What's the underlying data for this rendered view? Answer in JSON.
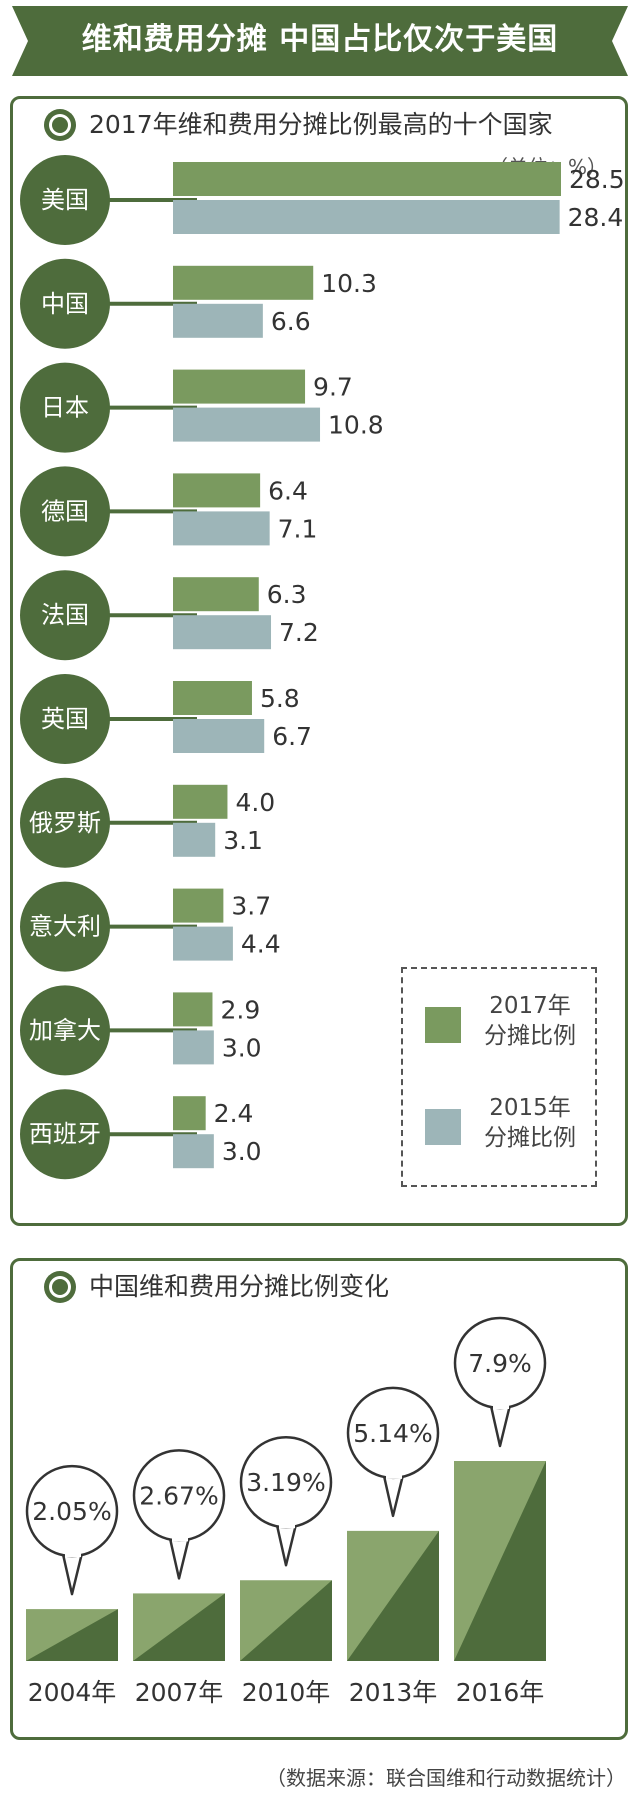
{
  "header": {
    "title": "维和费用分摊 中国占比仅次于美国"
  },
  "panel1": {
    "title": "2017年维和费用分摊比例最高的十个国家",
    "unit": "（单位：%）",
    "legend": [
      {
        "line1": "2017年",
        "line2": "分摊比例",
        "color": "#7a9a5f"
      },
      {
        "line1": "2015年",
        "line2": "分摊比例",
        "color": "#9db5b8"
      }
    ]
  },
  "panel2": {
    "title": "中国维和费用分摊比例变化"
  },
  "source": "（数据来源：联合国维和行动数据统计）",
  "colors": {
    "dark_green": "#4e6c3c",
    "green_2017": "#7a9a5f",
    "blue_2015": "#9db5b8",
    "bar_light": "#8aa56d"
  },
  "chart_data": [
    {
      "type": "bar",
      "orientation": "horizontal",
      "title": "2017年维和费用分摊比例最高的十个国家",
      "unit": "%",
      "categories": [
        "美国",
        "中国",
        "日本",
        "德国",
        "法国",
        "英国",
        "俄罗斯",
        "意大利",
        "加拿大",
        "西班牙"
      ],
      "series": [
        {
          "name": "2017年分摊比例",
          "values": [
            28.5,
            10.3,
            9.7,
            6.4,
            6.3,
            5.8,
            4.0,
            3.7,
            2.9,
            2.4
          ],
          "labels": [
            "28.5",
            "10.3",
            "9.7",
            "6.4",
            "6.3",
            "5.8",
            "4.0",
            "3.7",
            "2.9",
            "2.4"
          ]
        },
        {
          "name": "2015年分摊比例",
          "values": [
            28.4,
            6.6,
            10.8,
            7.1,
            7.2,
            6.7,
            3.1,
            4.4,
            3.0,
            3.0
          ],
          "labels": [
            "28.4",
            "6.6",
            "10.8",
            "7.1",
            "7.2",
            "6.7",
            "3.1",
            "4.4",
            "3.0",
            "3.0"
          ]
        }
      ],
      "legend": "bottom-right"
    },
    {
      "type": "bar",
      "title": "中国维和费用分摊比例变化",
      "categories": [
        "2004年",
        "2007年",
        "2010年",
        "2013年",
        "2016年"
      ],
      "values": [
        2.05,
        2.67,
        3.19,
        5.14,
        7.9
      ],
      "labels": [
        "2.05%",
        "2.67%",
        "3.19%",
        "5.14%",
        "7.9%"
      ]
    }
  ]
}
